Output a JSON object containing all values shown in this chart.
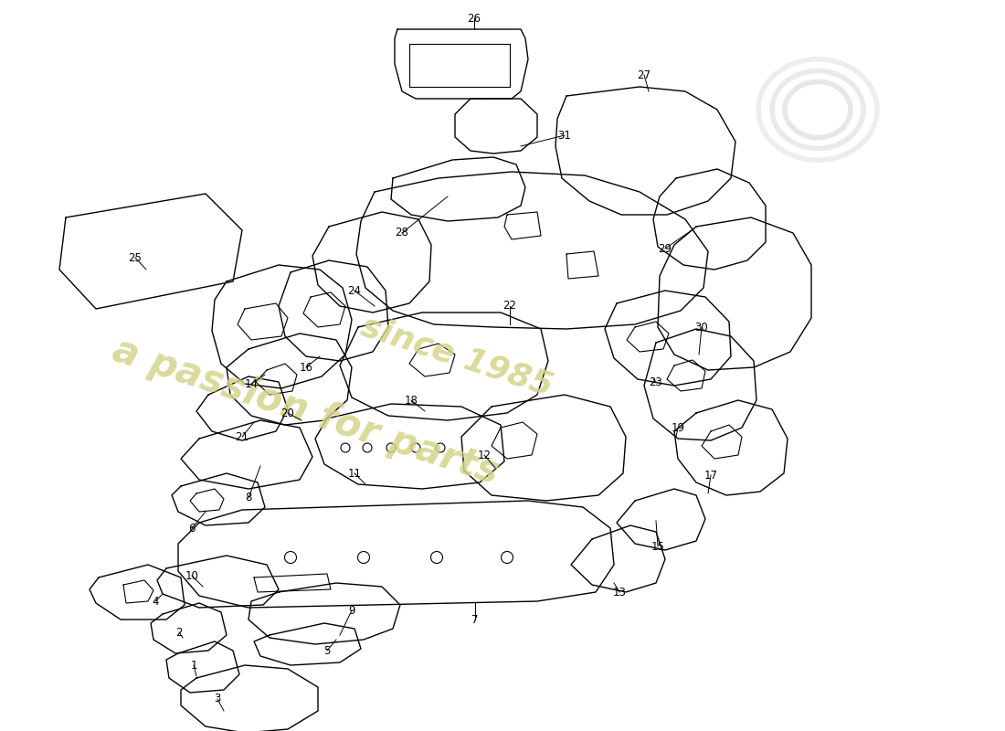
{
  "background_color": "#ffffff",
  "line_color": "#000000",
  "watermark_text1": "a passion for parts",
  "watermark_text2": "since 1985",
  "watermark_color": "#d4d48a",
  "lw": 1.0
}
